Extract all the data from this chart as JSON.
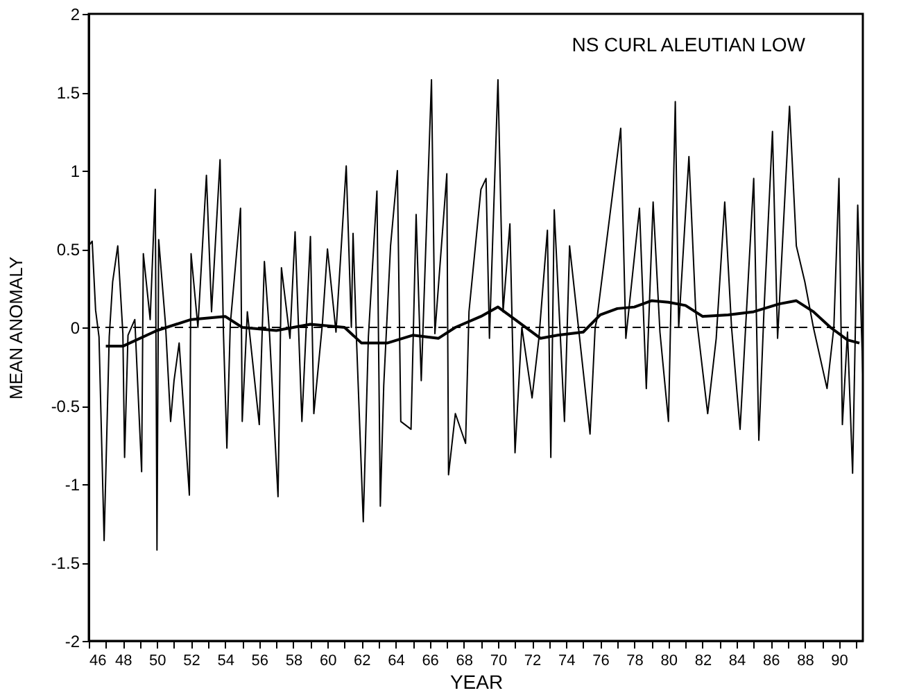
{
  "chart_data": {
    "type": "line",
    "title": "NS CURL ALEUTIAN LOW",
    "xlabel": "YEAR",
    "ylabel": "MEAN ANOMALY",
    "xlim": [
      46,
      91.4
    ],
    "ylim": [
      -2,
      2
    ],
    "xticks": [
      46,
      {
        "value": 47,
        "label": null
      },
      48,
      {
        "value": 49,
        "label": null
      },
      50,
      {
        "value": 51,
        "label": null
      },
      52,
      {
        "value": 53,
        "label": null
      },
      54,
      {
        "value": 55,
        "label": null
      },
      56,
      {
        "value": 57,
        "label": null
      },
      58,
      {
        "value": 59,
        "label": null
      },
      60,
      {
        "value": 61,
        "label": null
      },
      62,
      {
        "value": 63,
        "label": null
      },
      64,
      {
        "value": 65,
        "label": null
      },
      66,
      {
        "value": 67,
        "label": null
      },
      68,
      {
        "value": 69,
        "label": null
      },
      70,
      {
        "value": 71,
        "label": null
      },
      72,
      {
        "value": 73,
        "label": null
      },
      74,
      {
        "value": 75,
        "label": null
      },
      76,
      {
        "value": 77,
        "label": null
      },
      78,
      {
        "value": 79,
        "label": null
      },
      80,
      {
        "value": 81,
        "label": null
      },
      82,
      {
        "value": 83,
        "label": null
      },
      84,
      {
        "value": 85,
        "label": null
      },
      86,
      {
        "value": 87,
        "label": null
      },
      88,
      {
        "value": 89,
        "label": null
      },
      90,
      {
        "value": 91,
        "label": null
      }
    ],
    "yticks": [
      -2,
      -1.5,
      -1,
      -0.5,
      0,
      0.5,
      1,
      1.5,
      2
    ],
    "grid": false,
    "legend": false,
    "marker": "none",
    "line_style": "solid",
    "series": [
      {
        "color": "#000000",
        "x": [
          46.0,
          46.2,
          46.4,
          46.6,
          46.9,
          47.2,
          47.4,
          47.7,
          48.0,
          48.1,
          48.3,
          48.7,
          49.1,
          49.2,
          49.6,
          49.9,
          50.0,
          50.1,
          50.5,
          50.8,
          51.0,
          51.3,
          51.9,
          52.0,
          52.4,
          52.9,
          53.2,
          53.7,
          53.9,
          54.1,
          54.3,
          54.9,
          55.0,
          55.3,
          56.0,
          56.3,
          56.6,
          57.1,
          57.3,
          57.8,
          58.1,
          58.5,
          59.0,
          59.2,
          59.7,
          60.0,
          60.5,
          61.1,
          61.4,
          61.5,
          61.7,
          62.1,
          62.4,
          62.9,
          63.1,
          63.3,
          63.7,
          64.1,
          64.3,
          64.9,
          65.2,
          65.5,
          66.1,
          66.3,
          67.0,
          67.1,
          67.5,
          68.1,
          68.3,
          69.0,
          69.3,
          69.5,
          70.0,
          70.3,
          70.7,
          71.0,
          71.4,
          72.0,
          72.4,
          72.9,
          73.1,
          73.3,
          73.9,
          74.2,
          75.4,
          75.7,
          75.8,
          77.2,
          77.5,
          78.3,
          78.7,
          79.1,
          79.5,
          80.0,
          80.4,
          80.6,
          81.2,
          81.6,
          82.3,
          82.8,
          83.3,
          83.7,
          84.2,
          85.0,
          85.3,
          85.6,
          86.1,
          86.4,
          87.1,
          87.5,
          88.0,
          88.5,
          89.3,
          89.7,
          90.0,
          90.2,
          90.5,
          90.8,
          91.1,
          91.4
        ],
        "values": [
          0.52,
          0.55,
          0.11,
          -0.06,
          -1.36,
          -0.06,
          0.29,
          0.52,
          -0.04,
          -0.83,
          -0.05,
          0.05,
          -0.92,
          0.47,
          0.05,
          0.88,
          -1.42,
          0.56,
          0.02,
          -0.6,
          -0.34,
          -0.1,
          -1.07,
          0.47,
          0.0,
          0.97,
          0.1,
          1.07,
          -0.04,
          -0.77,
          0.02,
          0.76,
          -0.6,
          0.1,
          -0.62,
          0.42,
          -0.04,
          -1.08,
          0.38,
          -0.07,
          0.61,
          -0.6,
          0.58,
          -0.55,
          0.02,
          0.5,
          -0.03,
          1.03,
          0.0,
          0.6,
          -0.07,
          -1.24,
          -0.06,
          0.87,
          -1.14,
          -0.37,
          0.52,
          1.0,
          -0.6,
          -0.65,
          0.72,
          -0.34,
          1.58,
          -0.04,
          0.98,
          -0.94,
          -0.55,
          -0.74,
          0.1,
          0.88,
          0.95,
          -0.07,
          1.58,
          0.1,
          0.66,
          -0.8,
          0.0,
          -0.45,
          -0.07,
          0.62,
          -0.83,
          0.75,
          -0.6,
          0.52,
          -0.68,
          0.0,
          0.05,
          1.27,
          -0.07,
          0.76,
          -0.39,
          0.8,
          -0.03,
          -0.6,
          1.44,
          0.0,
          1.09,
          0.1,
          -0.55,
          -0.07,
          0.8,
          0.0,
          -0.65,
          0.95,
          -0.72,
          0.1,
          1.25,
          -0.07,
          1.41,
          0.52,
          0.29,
          0.0,
          -0.39,
          0.0,
          0.95,
          -0.62,
          -0.03,
          -0.93,
          0.78,
          -0.3
        ]
      },
      {
        "color": "#000000",
        "x": [
          47.0,
          48.0,
          50.0,
          52.0,
          54.0,
          55.0,
          57.0,
          59.0,
          61.0,
          62.0,
          63.5,
          65.0,
          66.5,
          67.5,
          69.0,
          70.0,
          71.0,
          72.5,
          73.5,
          75.0,
          76.0,
          77.0,
          78.0,
          79.0,
          80.0,
          81.0,
          82.0,
          83.5,
          85.0,
          86.5,
          87.5,
          88.5,
          89.5,
          90.5,
          91.2
        ],
        "values": [
          -0.12,
          -0.12,
          -0.02,
          0.05,
          0.07,
          0.0,
          -0.02,
          0.02,
          0.0,
          -0.1,
          -0.1,
          -0.05,
          -0.07,
          0.0,
          0.07,
          0.13,
          0.05,
          -0.07,
          -0.05,
          -0.03,
          0.08,
          0.12,
          0.13,
          0.17,
          0.16,
          0.14,
          0.07,
          0.08,
          0.1,
          0.15,
          0.17,
          0.1,
          0.0,
          -0.08,
          -0.1
        ]
      }
    ],
    "ref_lines": [
      {
        "axis": "y",
        "value": 0,
        "color": "#000000",
        "line_style": "dashed"
      }
    ]
  }
}
